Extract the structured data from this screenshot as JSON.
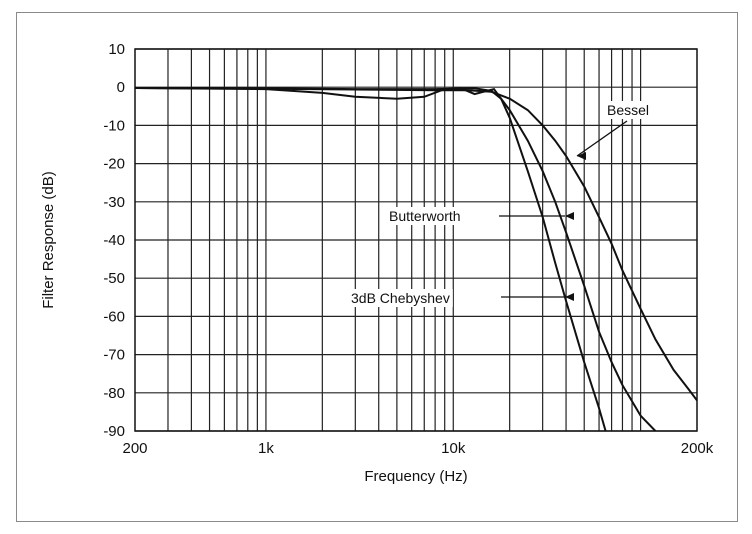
{
  "chart_data": {
    "type": "line",
    "xlabel": "Frequency (Hz)",
    "ylabel": "Filter Response (dB)",
    "x_scale": "log",
    "xlim": [
      200,
      200000
    ],
    "ylim": [
      -90,
      10
    ],
    "grid": true,
    "x_tick_labels": [
      {
        "value": 200,
        "label": "200"
      },
      {
        "value": 1000,
        "label": "1k"
      },
      {
        "value": 10000,
        "label": "10k"
      },
      {
        "value": 200000,
        "label": "200k"
      }
    ],
    "y_tick_labels": [
      {
        "value": 10,
        "label": "10"
      },
      {
        "value": 0,
        "label": "0"
      },
      {
        "value": -10,
        "label": "-10"
      },
      {
        "value": -20,
        "label": "-20"
      },
      {
        "value": -30,
        "label": "-30"
      },
      {
        "value": -40,
        "label": "-40"
      },
      {
        "value": -50,
        "label": "-50"
      },
      {
        "value": -60,
        "label": "-60"
      },
      {
        "value": -70,
        "label": "-70"
      },
      {
        "value": -80,
        "label": "-80"
      },
      {
        "value": -90,
        "label": "-90"
      }
    ],
    "series": [
      {
        "name": "Bessel",
        "points": [
          [
            200,
            -0.2
          ],
          [
            1000,
            -0.4
          ],
          [
            3000,
            -0.6
          ],
          [
            8000,
            -0.8
          ],
          [
            12000,
            -0.8
          ],
          [
            16000,
            -1.2
          ],
          [
            20000,
            -3
          ],
          [
            25000,
            -6
          ],
          [
            30000,
            -10
          ],
          [
            35000,
            -14
          ],
          [
            40000,
            -18
          ],
          [
            50000,
            -26
          ],
          [
            60000,
            -34
          ],
          [
            70000,
            -41
          ],
          [
            80000,
            -48
          ],
          [
            100000,
            -58
          ],
          [
            120000,
            -66
          ],
          [
            150000,
            -74
          ],
          [
            180000,
            -79
          ],
          [
            200000,
            -82
          ]
        ]
      },
      {
        "name": "Butterworth",
        "points": [
          [
            200,
            -0.2
          ],
          [
            1000,
            -0.3
          ],
          [
            3000,
            -0.5
          ],
          [
            8000,
            -0.5
          ],
          [
            10000,
            -0.4
          ],
          [
            13000,
            -0.3
          ],
          [
            16000,
            -1
          ],
          [
            18000,
            -3
          ],
          [
            20000,
            -6
          ],
          [
            25000,
            -14
          ],
          [
            30000,
            -22
          ],
          [
            35000,
            -30
          ],
          [
            40000,
            -38
          ],
          [
            50000,
            -52
          ],
          [
            60000,
            -64
          ],
          [
            70000,
            -72
          ],
          [
            80000,
            -78
          ],
          [
            100000,
            -86
          ],
          [
            120000,
            -90
          ]
        ]
      },
      {
        "name": "3dB Chebyshev",
        "points": [
          [
            200,
            -0.2
          ],
          [
            1000,
            -0.5
          ],
          [
            2000,
            -1.5
          ],
          [
            3000,
            -2.5
          ],
          [
            5000,
            -3
          ],
          [
            7000,
            -2.5
          ],
          [
            9000,
            -0.5
          ],
          [
            11000,
            -0.3
          ],
          [
            13000,
            -1.8
          ],
          [
            15000,
            -1
          ],
          [
            16500,
            -0.5
          ],
          [
            18000,
            -3
          ],
          [
            20000,
            -8
          ],
          [
            25000,
            -22
          ],
          [
            30000,
            -34
          ],
          [
            35000,
            -46
          ],
          [
            40000,
            -56
          ],
          [
            50000,
            -72
          ],
          [
            60000,
            -84
          ],
          [
            65000,
            -90
          ]
        ]
      }
    ],
    "annotations": [
      {
        "text": "Bessel",
        "series": "Bessel"
      },
      {
        "text": "Butterworth",
        "series": "Butterworth"
      },
      {
        "text": "3dB Chebyshev",
        "series": "3dB Chebyshev"
      }
    ]
  }
}
